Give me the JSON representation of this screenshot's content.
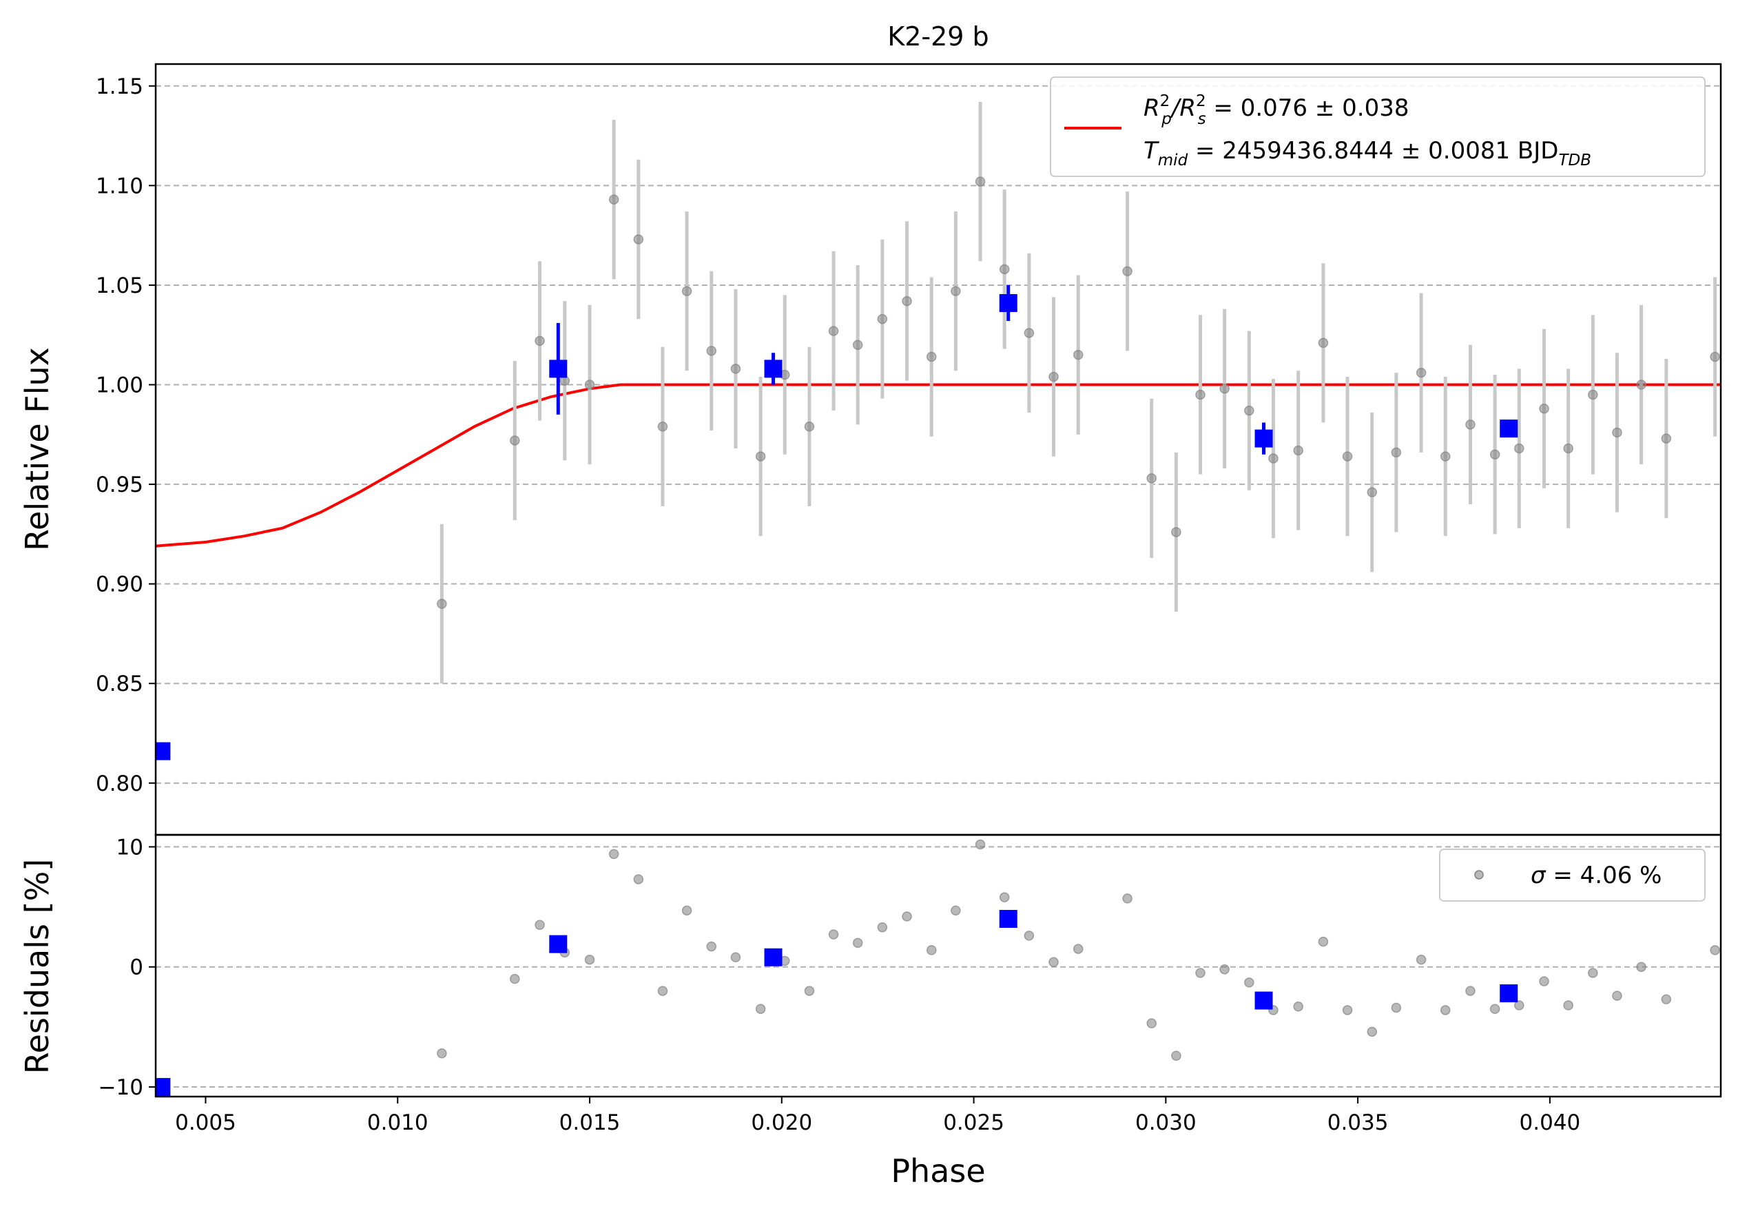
{
  "chart_data": {
    "type": "scatter",
    "title": "K2-29 b",
    "xlabel": "Phase",
    "xlim": [
      0.0037,
      0.04445
    ],
    "x_ticks": [
      "0.005",
      "0.010",
      "0.015",
      "0.020",
      "0.025",
      "0.030",
      "0.035",
      "0.040"
    ],
    "x_tick_values": [
      0.005,
      0.01,
      0.015,
      0.02,
      0.025,
      0.03,
      0.035,
      0.04
    ],
    "grid": "horizontal dashed",
    "colors": {
      "data": "#808080",
      "errorbar": "#c8c8c8",
      "binned": "#0000ff",
      "model": "#ff0000",
      "frame": "#000000"
    },
    "panels": [
      {
        "name": "flux",
        "ylabel": "Relative Flux",
        "ylim": [
          0.774,
          1.161
        ],
        "y_ticks": [
          "0.80",
          "0.85",
          "0.90",
          "0.95",
          "1.00",
          "1.05",
          "1.10",
          "1.15"
        ],
        "y_tick_values": [
          0.8,
          0.85,
          0.9,
          0.95,
          1.0,
          1.05,
          1.1,
          1.15
        ],
        "legend": {
          "placement": "top-right",
          "line1_a": "R",
          "line1_a_sup": "2",
          "line1_a_sub": "p",
          "line1_sep": "/R",
          "line1_b_sup": "2",
          "line1_b_sub": "s",
          "line1_rest": " = 0.076 ± 0.038",
          "line2_a": "T",
          "line2_a_sub": "mid",
          "line2_rest": " = 2459436.8444 ± 0.0081 BJD",
          "line2_sub": "TDB"
        },
        "series": [
          {
            "kind": "data",
            "points": [
              [
                0.01115,
                0.89
              ],
              [
                0.01305,
                0.972
              ],
              [
                0.0137,
                1.022
              ],
              [
                0.01435,
                1.002
              ],
              [
                0.015,
                1.0
              ],
              [
                0.01563,
                1.093
              ],
              [
                0.01627,
                1.073
              ],
              [
                0.0169,
                0.979
              ],
              [
                0.01753,
                1.047
              ],
              [
                0.01817,
                1.017
              ],
              [
                0.0188,
                1.008
              ],
              [
                0.01945,
                0.964
              ],
              [
                0.02008,
                1.005
              ],
              [
                0.02072,
                0.979
              ],
              [
                0.02135,
                1.027
              ],
              [
                0.02198,
                1.02
              ],
              [
                0.02262,
                1.033
              ],
              [
                0.02326,
                1.042
              ],
              [
                0.0239,
                1.014
              ],
              [
                0.02453,
                1.047
              ],
              [
                0.02517,
                1.102
              ],
              [
                0.0258,
                1.058
              ],
              [
                0.02644,
                1.026
              ],
              [
                0.02708,
                1.004
              ],
              [
                0.02772,
                1.015
              ],
              [
                0.029,
                1.057
              ],
              [
                0.02963,
                0.953
              ],
              [
                0.03027,
                0.926
              ],
              [
                0.0309,
                0.995
              ],
              [
                0.03153,
                0.998
              ],
              [
                0.03217,
                0.987
              ],
              [
                0.0328,
                0.963
              ],
              [
                0.03345,
                0.967
              ],
              [
                0.0341,
                1.021
              ],
              [
                0.03473,
                0.964
              ],
              [
                0.03537,
                0.946
              ],
              [
                0.036,
                0.966
              ],
              [
                0.03665,
                1.006
              ],
              [
                0.03728,
                0.964
              ],
              [
                0.03793,
                0.98
              ],
              [
                0.03857,
                0.965
              ],
              [
                0.0392,
                0.968
              ],
              [
                0.03985,
                0.988
              ],
              [
                0.04048,
                0.968
              ],
              [
                0.04112,
                0.995
              ],
              [
                0.04175,
                0.976
              ],
              [
                0.04238,
                1.0
              ],
              [
                0.04303,
                0.973
              ],
              [
                0.0443,
                1.014
              ]
            ],
            "yerr": 0.04
          },
          {
            "kind": "binned",
            "points": [
              [
                0.00385,
                0.816
              ],
              [
                0.01418,
                1.008
              ],
              [
                0.01978,
                1.008
              ],
              [
                0.0259,
                1.041
              ],
              [
                0.03255,
                0.973
              ],
              [
                0.03893,
                0.978
              ]
            ],
            "yerr": [
              0.004,
              0.023,
              0.008,
              0.009,
              0.008,
              0.003
            ]
          },
          {
            "kind": "model",
            "points": [
              [
                0.0037,
                0.919
              ],
              [
                0.005,
                0.921
              ],
              [
                0.006,
                0.924
              ],
              [
                0.007,
                0.928
              ],
              [
                0.008,
                0.936
              ],
              [
                0.009,
                0.946
              ],
              [
                0.01,
                0.957
              ],
              [
                0.011,
                0.968
              ],
              [
                0.012,
                0.979
              ],
              [
                0.013,
                0.988
              ],
              [
                0.014,
                0.994
              ],
              [
                0.015,
                0.998
              ],
              [
                0.0158,
                1.0
              ],
              [
                0.0165,
                1.0
              ],
              [
                0.04445,
                1.0
              ]
            ]
          }
        ]
      },
      {
        "name": "residuals",
        "ylabel": "Residuals [%]",
        "ylim": [
          -10.8,
          11.0
        ],
        "y_ticks": [
          "−10",
          "0",
          "10"
        ],
        "y_tick_values": [
          -10,
          0,
          10
        ],
        "legend": {
          "placement": "top-right",
          "label_sym": "σ",
          "label_rest": " = 4.06 %"
        },
        "series": [
          {
            "kind": "data",
            "points": [
              [
                0.01115,
                -7.2
              ],
              [
                0.01305,
                -1.0
              ],
              [
                0.0137,
                3.5
              ],
              [
                0.01435,
                1.2
              ],
              [
                0.015,
                0.6
              ],
              [
                0.01563,
                9.4
              ],
              [
                0.01627,
                7.3
              ],
              [
                0.0169,
                -2.0
              ],
              [
                0.01753,
                4.7
              ],
              [
                0.01817,
                1.7
              ],
              [
                0.0188,
                0.8
              ],
              [
                0.01945,
                -3.5
              ],
              [
                0.02008,
                0.5
              ],
              [
                0.02072,
                -2.0
              ],
              [
                0.02135,
                2.7
              ],
              [
                0.02198,
                2.0
              ],
              [
                0.02262,
                3.3
              ],
              [
                0.02326,
                4.2
              ],
              [
                0.0239,
                1.4
              ],
              [
                0.02453,
                4.7
              ],
              [
                0.02517,
                10.2
              ],
              [
                0.0258,
                5.8
              ],
              [
                0.02644,
                2.6
              ],
              [
                0.02708,
                0.4
              ],
              [
                0.02772,
                1.5
              ],
              [
                0.029,
                5.7
              ],
              [
                0.02963,
                -4.7
              ],
              [
                0.03027,
                -7.4
              ],
              [
                0.0309,
                -0.5
              ],
              [
                0.03153,
                -0.2
              ],
              [
                0.03217,
                -1.3
              ],
              [
                0.0328,
                -3.6
              ],
              [
                0.03345,
                -3.3
              ],
              [
                0.0341,
                2.1
              ],
              [
                0.03473,
                -3.6
              ],
              [
                0.03537,
                -5.4
              ],
              [
                0.036,
                -3.4
              ],
              [
                0.03665,
                0.6
              ],
              [
                0.03728,
                -3.6
              ],
              [
                0.03793,
                -2.0
              ],
              [
                0.03857,
                -3.5
              ],
              [
                0.0392,
                -3.2
              ],
              [
                0.03985,
                -1.2
              ],
              [
                0.04048,
                -3.2
              ],
              [
                0.04112,
                -0.5
              ],
              [
                0.04175,
                -2.4
              ],
              [
                0.04238,
                0.0
              ],
              [
                0.04303,
                -2.7
              ],
              [
                0.0443,
                1.4
              ]
            ]
          },
          {
            "kind": "binned",
            "points": [
              [
                0.00385,
                -10.0
              ],
              [
                0.01418,
                1.9
              ],
              [
                0.01978,
                0.8
              ],
              [
                0.0259,
                4.0
              ],
              [
                0.03255,
                -2.8
              ],
              [
                0.03893,
                -2.2
              ]
            ]
          }
        ]
      }
    ]
  }
}
